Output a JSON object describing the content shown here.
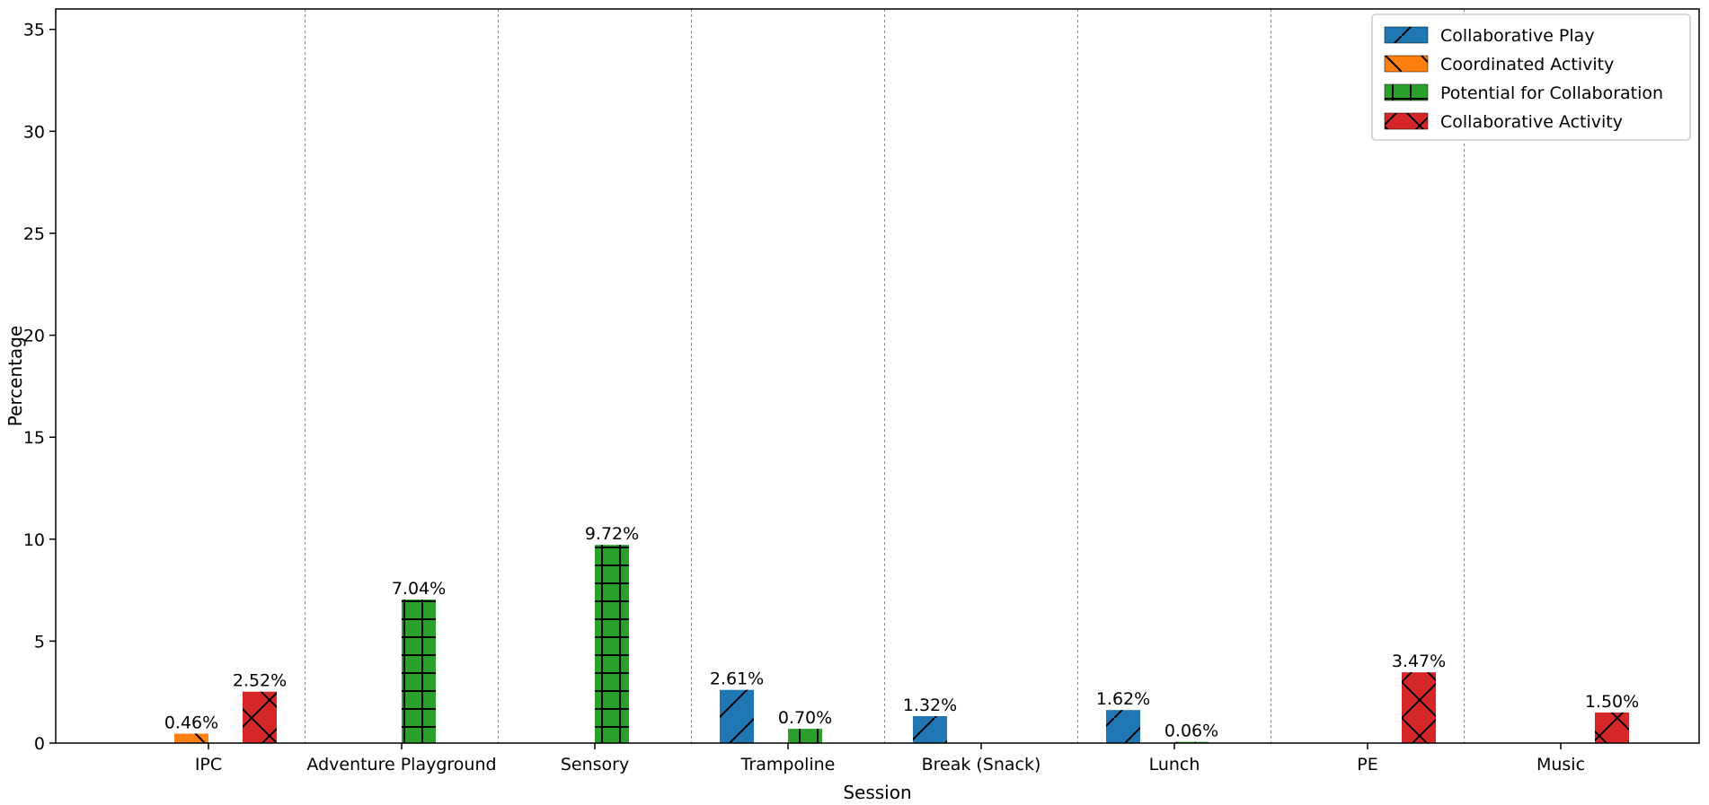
{
  "chart_data": {
    "type": "bar",
    "title": "",
    "xlabel": "Session",
    "ylabel": "Percentage",
    "ylim": [
      0,
      36
    ],
    "yticks": [
      0,
      5,
      10,
      15,
      20,
      25,
      30,
      35
    ],
    "grid": "vertical dashed separators between sessions",
    "legend_position": "top-right",
    "categories": [
      "IPC",
      "Adventure Playground",
      "Sensory",
      "Trampoline",
      "Break (Snack)",
      "Lunch",
      "PE",
      "Music"
    ],
    "series": [
      {
        "name": "Collaborative Play",
        "color": "#1f77b4",
        "hatch": "diagonal-forward",
        "values": [
          0,
          0,
          0,
          2.61,
          1.32,
          1.62,
          0,
          0
        ],
        "labels": [
          "",
          "",
          "",
          "2.61%",
          "1.32%",
          "1.62%",
          "",
          ""
        ]
      },
      {
        "name": "Coordinated Activity",
        "color": "#ff7f0e",
        "hatch": "diagonal-back",
        "values": [
          0.46,
          0,
          0,
          0,
          0,
          0,
          0,
          0
        ],
        "labels": [
          "0.46%",
          "",
          "",
          "",
          "",
          "",
          "",
          ""
        ]
      },
      {
        "name": "Potential for Collaboration",
        "color": "#2ca02c",
        "hatch": "grid",
        "values": [
          0,
          7.04,
          9.72,
          0.7,
          0,
          0.06,
          0,
          0
        ],
        "labels": [
          "",
          "7.04%",
          "9.72%",
          "0.70%",
          "",
          "0.06%",
          "",
          ""
        ]
      },
      {
        "name": "Collaborative Activity",
        "color": "#d62728",
        "hatch": "cross",
        "values": [
          2.52,
          0,
          0,
          0,
          0,
          0,
          3.47,
          1.5
        ],
        "labels": [
          "2.52%",
          "",
          "",
          "",
          "",
          "",
          "3.47%",
          "1.50%"
        ]
      }
    ]
  }
}
